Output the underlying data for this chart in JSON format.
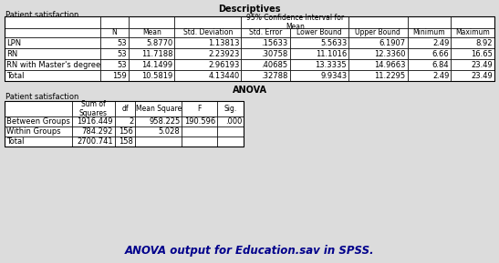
{
  "bg_color": "#dcdcdc",
  "table_bg": "#ffffff",
  "title1": "Descriptives",
  "subtitle1": "Patient satisfaction",
  "ci_header_line1": "95% Confidence Interval for",
  "ci_header_line2": "Mean",
  "desc_col_labels_row1": [
    "",
    "",
    "",
    "",
    "",
    "95% Confidence Interval for\nMean",
    "",
    "",
    ""
  ],
  "desc_col_labels_row2": [
    "",
    "N",
    "Mean",
    "Std. Deviation",
    "Std. Error",
    "Lower Bound",
    "Upper Bound",
    "Minimum",
    "Maximum"
  ],
  "desc_rows": [
    [
      "LPN",
      "53",
      "5.8770",
      "1.13813",
      ".15633",
      "5.5633",
      "6.1907",
      "2.49",
      "8.92"
    ],
    [
      "RN",
      "53",
      "11.7188",
      "2.23923",
      ".30758",
      "11.1016",
      "12.3360",
      "6.66",
      "16.65"
    ],
    [
      "RN with Master's degree",
      "53",
      "14.1499",
      "2.96193",
      ".40685",
      "13.3335",
      "14.9663",
      "6.84",
      "23.49"
    ],
    [
      "Total",
      "159",
      "10.5819",
      "4.13440",
      ".32788",
      "9.9343",
      "11.2295",
      "2.49",
      "23.49"
    ]
  ],
  "title2": "ANOVA",
  "subtitle2": "Patient satisfaction",
  "anova_col_labels": [
    "",
    "Sum of\nSquares",
    "df",
    "Mean Square",
    "F",
    "Sig."
  ],
  "anova_rows": [
    [
      "Between Groups",
      "1916.449",
      "2",
      "958.225",
      "190.596",
      ".000"
    ],
    [
      "Within Groups",
      "784.292",
      "156",
      "5.028",
      "",
      ""
    ],
    [
      "Total",
      "2700.741",
      "158",
      "",
      "",
      ""
    ]
  ],
  "caption": "ANOVA output for Education.sav in SPSS.",
  "fs": 6.0,
  "fs_title": 7.0,
  "fs_caption": 8.5
}
